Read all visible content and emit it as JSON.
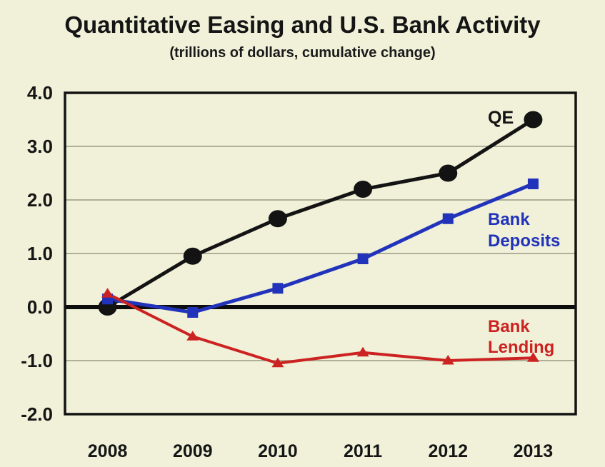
{
  "page": {
    "background_color": "#f0f1d8"
  },
  "header": {
    "title": "Quantitative Easing and U.S. Bank Activity",
    "subtitle": "(trillions of dollars, cumulative change)"
  },
  "chart_data": {
    "type": "line",
    "title": "Quantitative Easing and U.S. Bank Activity",
    "subtitle": "(trillions of dollars, cumulative change)",
    "categories": [
      "2008",
      "2009",
      "2010",
      "2011",
      "2012",
      "2013"
    ],
    "series": [
      {
        "name": "QE",
        "color": "#131313",
        "marker": "circle",
        "line_width": 5,
        "values": [
          0.0,
          0.95,
          1.65,
          2.2,
          2.5,
          3.5
        ]
      },
      {
        "name": "Bank Deposits",
        "color": "#2233bb",
        "marker": "square",
        "line_width": 5,
        "values": [
          0.15,
          -0.1,
          0.35,
          0.9,
          1.65,
          2.3
        ]
      },
      {
        "name": "Bank Lending",
        "color": "#cc2222",
        "marker": "triangle",
        "line_width": 4,
        "values": [
          0.25,
          -0.55,
          -1.05,
          -0.85,
          -1.0,
          -0.95
        ]
      }
    ],
    "xlabel": "",
    "ylabel": "",
    "ylim": [
      -2.0,
      4.0
    ],
    "y_ticks": [
      "4.0",
      "3.0",
      "2.0",
      "1.0",
      "0.0",
      "-1.0",
      "-2.0"
    ],
    "y_tick_values": [
      4,
      3,
      2,
      1,
      0,
      -1,
      -2
    ],
    "grid_values": [
      3,
      2,
      1,
      -1
    ],
    "grid_on": true,
    "zero_line": true,
    "legend_position": "inline-annotations",
    "annotations": [
      {
        "lines": [
          "QE"
        ],
        "color": "#131313",
        "x": 683,
        "baselines": [
          173
        ],
        "size": 25
      },
      {
        "lines": [
          "Bank",
          "Deposits"
        ],
        "color": "#2233bb",
        "x": 683,
        "baselines": [
          315,
          345
        ],
        "size": 24
      },
      {
        "lines": [
          "Bank",
          "Lending"
        ],
        "color": "#cc2222",
        "x": 683,
        "baselines": [
          465,
          494
        ],
        "size": 24
      }
    ],
    "colors": {
      "grid": "#9b9b85",
      "axis_border": "#131313",
      "zero_line": "#0d0d0d",
      "tick_text": "#151515"
    }
  }
}
